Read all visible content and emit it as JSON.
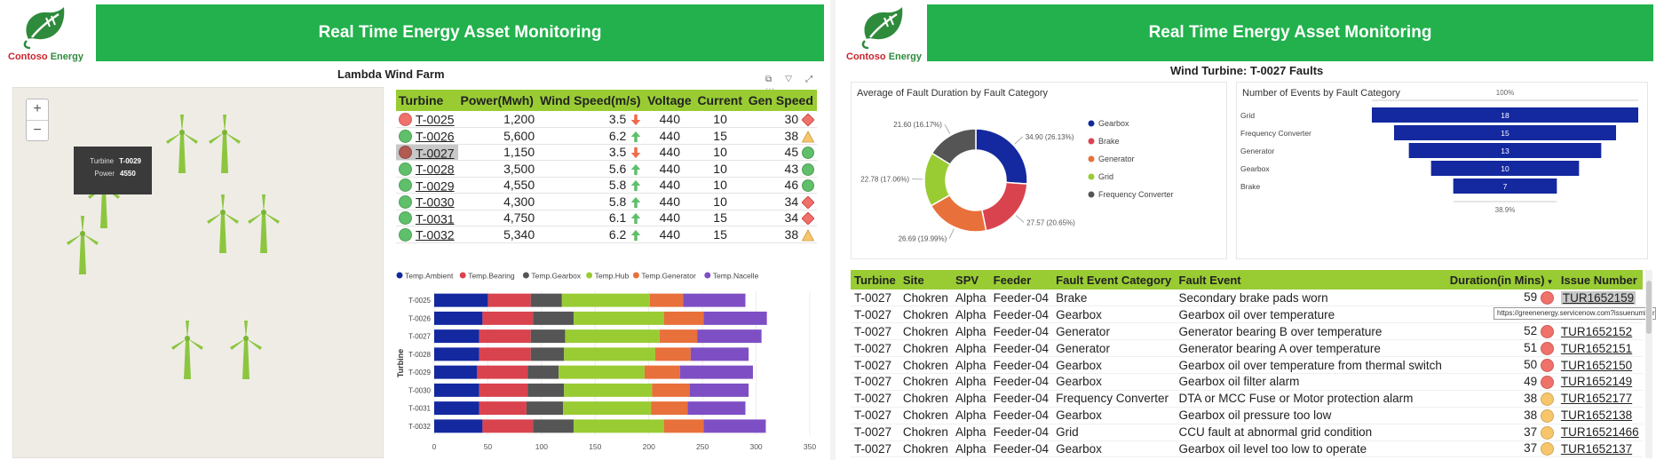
{
  "brand": {
    "name_part1": "Contoso",
    "name_part2": "Energy"
  },
  "left": {
    "header_title": "Real Time Energy Asset Monitoring",
    "section_title": "Lambda Wind Farm",
    "map": {
      "zoom_in": "+",
      "zoom_out": "−",
      "tooltip": {
        "turbine_label": "Turbine",
        "turbine_value": "T-0029",
        "power_label": "Power",
        "power_value": "4550"
      }
    },
    "visual_icons": "⧉ ▽ ⤢ ⋯",
    "turbine_table": {
      "headers": [
        "Turbine",
        "Power(Mwh)",
        "Wind Speed(m/s)",
        "Voltage",
        "Current",
        "Gen Speed"
      ],
      "rows": [
        {
          "status": "#f0706a",
          "turbine": "T-0025",
          "power": "1,200",
          "wind": "3.5",
          "trend": "down",
          "voltage": "440",
          "current": "10",
          "gen": "30",
          "gen_ind": "diamond"
        },
        {
          "status": "#5fbf6a",
          "turbine": "T-0026",
          "power": "5,600",
          "wind": "6.2",
          "trend": "up",
          "voltage": "440",
          "current": "15",
          "gen": "38",
          "gen_ind": "triangle"
        },
        {
          "status": "#b05a52",
          "turbine": "T-0027",
          "power": "1,150",
          "wind": "3.5",
          "trend": "down",
          "voltage": "440",
          "current": "10",
          "gen": "45",
          "gen_ind": "circle",
          "selected": true
        },
        {
          "status": "#5fbf6a",
          "turbine": "T-0028",
          "power": "3,500",
          "wind": "5.6",
          "trend": "up",
          "voltage": "440",
          "current": "10",
          "gen": "43",
          "gen_ind": "circle"
        },
        {
          "status": "#5fbf6a",
          "turbine": "T-0029",
          "power": "4,550",
          "wind": "5.8",
          "trend": "up",
          "voltage": "440",
          "current": "10",
          "gen": "46",
          "gen_ind": "circle"
        },
        {
          "status": "#5fbf6a",
          "turbine": "T-0030",
          "power": "4,300",
          "wind": "5.8",
          "trend": "up",
          "voltage": "440",
          "current": "10",
          "gen": "34",
          "gen_ind": "diamond"
        },
        {
          "status": "#5fbf6a",
          "turbine": "T-0031",
          "power": "4,750",
          "wind": "6.1",
          "trend": "up",
          "voltage": "440",
          "current": "15",
          "gen": "34",
          "gen_ind": "diamond"
        },
        {
          "status": "#5fbf6a",
          "turbine": "T-0032",
          "power": "5,340",
          "wind": "6.2",
          "trend": "up",
          "voltage": "440",
          "current": "15",
          "gen": "38",
          "gen_ind": "triangle"
        }
      ]
    }
  },
  "right": {
    "header_title": "Real Time Energy Asset Monitoring",
    "section_title": "Wind Turbine:  T-0027 Faults",
    "url_tooltip": "https://greenenergy.servicenow.com?issuenumber=TUR1652",
    "fault_table": {
      "headers": [
        "Turbine",
        "Site",
        "SPV",
        "Feeder",
        "Fault Event Category",
        "Fault Event",
        "Duration(in Mins)",
        "Issue Number"
      ],
      "sort_indicator": "▼",
      "rows": [
        {
          "turbine": "T-0027",
          "site": "Chokren",
          "spv": "Alpha",
          "feeder": "Feeder-04",
          "category": "Brake",
          "event": "Secondary brake pads worn",
          "duration": "59",
          "dot": "#f0706a",
          "issue": "TUR1652159"
        },
        {
          "turbine": "T-0027",
          "site": "Chokren",
          "spv": "Alpha",
          "feeder": "Feeder-04",
          "category": "Gearbox",
          "event": "Gearbox oil over temperature",
          "duration": "",
          "dot": "",
          "issue": ""
        },
        {
          "turbine": "T-0027",
          "site": "Chokren",
          "spv": "Alpha",
          "feeder": "Feeder-04",
          "category": "Generator",
          "event": "Generator bearing B over temperature",
          "duration": "52",
          "dot": "#f0706a",
          "issue": "TUR1652152"
        },
        {
          "turbine": "T-0027",
          "site": "Chokren",
          "spv": "Alpha",
          "feeder": "Feeder-04",
          "category": "Generator",
          "event": "Generator bearing A over temperature",
          "duration": "51",
          "dot": "#f0706a",
          "issue": "TUR1652151"
        },
        {
          "turbine": "T-0027",
          "site": "Chokren",
          "spv": "Alpha",
          "feeder": "Feeder-04",
          "category": "Gearbox",
          "event": "Gearbox oil over temperature from thermal switch",
          "duration": "50",
          "dot": "#f0706a",
          "issue": "TUR1652150"
        },
        {
          "turbine": "T-0027",
          "site": "Chokren",
          "spv": "Alpha",
          "feeder": "Feeder-04",
          "category": "Gearbox",
          "event": "Gearbox oil filter alarm",
          "duration": "49",
          "dot": "#f0706a",
          "issue": "TUR1652149"
        },
        {
          "turbine": "T-0027",
          "site": "Chokren",
          "spv": "Alpha",
          "feeder": "Feeder-04",
          "category": "Frequency Converter",
          "event": "DTA or MCC Fuse or Motor protection alarm",
          "duration": "38",
          "dot": "#f7c66b",
          "issue": "TUR1652177"
        },
        {
          "turbine": "T-0027",
          "site": "Chokren",
          "spv": "Alpha",
          "feeder": "Feeder-04",
          "category": "Gearbox",
          "event": "Gearbox oil pressure too low",
          "duration": "38",
          "dot": "#f7c66b",
          "issue": "TUR1652138"
        },
        {
          "turbine": "T-0027",
          "site": "Chokren",
          "spv": "Alpha",
          "feeder": "Feeder-04",
          "category": "Grid",
          "event": "CCU fault at abnormal grid condition",
          "duration": "37",
          "dot": "#f7c66b",
          "issue": "TUR16521466"
        },
        {
          "turbine": "T-0027",
          "site": "Chokren",
          "spv": "Alpha",
          "feeder": "Feeder-04",
          "category": "Gearbox",
          "event": "Gearbox oil level too low to operate",
          "duration": "37",
          "dot": "#f7c66b",
          "issue": "TUR1652137"
        }
      ]
    }
  },
  "colors": {
    "header_green": "#22b14c",
    "table_header_green": "#99cc33",
    "gearbox": "#1428a0",
    "brake": "#d9434e",
    "generator": "#e8703a",
    "grid": "#99cc33",
    "frequency_converter": "#555555"
  },
  "chart_data": [
    {
      "type": "bar",
      "orientation": "horizontal-stacked",
      "ylabel": "Turbine",
      "categories": [
        "T-0025",
        "T-0026",
        "T-0027",
        "T-0028",
        "T-0029",
        "T-0030",
        "T-0031",
        "T-0032"
      ],
      "x_ticks": [
        "0",
        "50",
        "100",
        "150",
        "200",
        "250",
        "300",
        "350"
      ],
      "xlim": [
        0,
        350
      ],
      "legend_position": "top",
      "series": [
        {
          "name": "Temp.Ambient",
          "color": "#1428a0",
          "values": [
            50,
            45,
            42,
            42,
            40,
            42,
            42,
            45
          ]
        },
        {
          "name": "Temp.Bearing",
          "color": "#d9434e",
          "values": [
            40,
            47,
            48,
            48,
            47,
            45,
            44,
            47
          ]
        },
        {
          "name": "Temp.Gearbox",
          "color": "#555555",
          "values": [
            29,
            38,
            32,
            31,
            29,
            34,
            34,
            38
          ]
        },
        {
          "name": "Temp.Hub",
          "color": "#99cc33",
          "values": [
            82,
            84,
            88,
            85,
            80,
            82,
            82,
            84
          ]
        },
        {
          "name": "Temp.Generator",
          "color": "#e8703a",
          "values": [
            31,
            37,
            35,
            33,
            33,
            35,
            34,
            37
          ]
        },
        {
          "name": "Temp.Nacelle",
          "color": "#7e4fc4",
          "values": [
            58,
            59,
            60,
            54,
            68,
            55,
            54,
            58
          ]
        }
      ]
    },
    {
      "type": "pie",
      "variant": "donut",
      "title": "Average of Fault Duration by Fault Category",
      "legend_position": "right",
      "slices": [
        {
          "name": "Gearbox",
          "value": 34.9,
          "label": "34.90 (26.13%)",
          "color": "#1428a0"
        },
        {
          "name": "Brake",
          "value": 27.57,
          "label": "27.57 (20.65%)",
          "color": "#d9434e"
        },
        {
          "name": "Generator",
          "value": 26.69,
          "label": "26.69 (19.99%)",
          "color": "#e8703a"
        },
        {
          "name": "Grid",
          "value": 22.78,
          "label": "22.78 (17.06%)",
          "color": "#99cc33"
        },
        {
          "name": "Frequency Converter",
          "value": 21.6,
          "label": "21.60 (16.17%)",
          "color": "#555555"
        }
      ]
    },
    {
      "type": "bar",
      "variant": "funnel",
      "title": "Number of Events by Fault Category",
      "top_label": "100%",
      "bottom_label": "38.9%",
      "categories": [
        "Grid",
        "Frequency Converter",
        "Generator",
        "Gearbox",
        "Brake"
      ],
      "values": [
        18,
        15,
        13,
        10,
        7
      ],
      "color": "#1428a0"
    }
  ]
}
